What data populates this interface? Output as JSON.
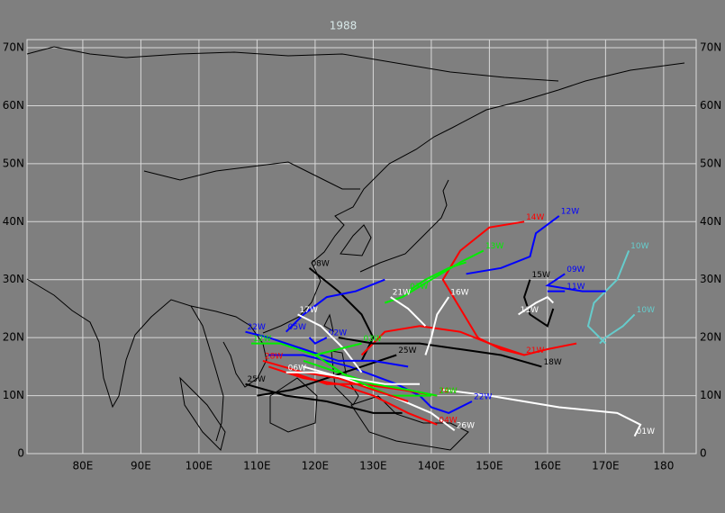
{
  "title": "1988",
  "map": {
    "xlim": [
      70.4,
      185.6
    ],
    "ylim": [
      0,
      71.4
    ],
    "grid": true,
    "xticks": [
      {
        "value": 80,
        "label": "80E"
      },
      {
        "value": 90,
        "label": "90E"
      },
      {
        "value": 100,
        "label": "100E"
      },
      {
        "value": 110,
        "label": "110E"
      },
      {
        "value": 120,
        "label": "120E"
      },
      {
        "value": 130,
        "label": "130E"
      },
      {
        "value": 140,
        "label": "140E"
      },
      {
        "value": 150,
        "label": "150E"
      },
      {
        "value": 160,
        "label": "160E"
      },
      {
        "value": 170,
        "label": "170E"
      },
      180
    ],
    "yticks": [
      0,
      {
        "value": 10,
        "label": "10N"
      },
      {
        "value": 20,
        "label": "20N"
      },
      {
        "value": 30,
        "label": "30N"
      },
      {
        "value": 40,
        "label": "40N"
      },
      {
        "value": 50,
        "label": "50N"
      },
      {
        "value": 60,
        "label": "60N"
      },
      {
        "value": 70,
        "label": "70N"
      }
    ],
    "tracks": [
      {
        "name": "01W",
        "color": "#ffffff",
        "points": [
          [
            175,
            3
          ],
          [
            176,
            5
          ],
          [
            172,
            7
          ],
          [
            162,
            8
          ],
          [
            150,
            10
          ],
          [
            142,
            11
          ]
        ]
      },
      {
        "name": "26W",
        "color": "#ffffff",
        "points": [
          [
            144,
            4
          ],
          [
            140,
            7
          ],
          [
            133,
            10
          ],
          [
            125,
            13
          ],
          [
            118,
            15
          ]
        ]
      },
      {
        "name": "04W",
        "color": "#ff0000",
        "points": [
          [
            141,
            5
          ],
          [
            136,
            7
          ],
          [
            130,
            10
          ],
          [
            124,
            12
          ],
          [
            118,
            13
          ],
          [
            112,
            15
          ]
        ]
      },
      {
        "name": "22W",
        "color": "#0000ff",
        "points": [
          [
            147,
            9
          ],
          [
            143,
            7
          ],
          [
            140,
            8
          ],
          [
            138,
            10
          ],
          [
            134,
            12
          ],
          [
            126,
            15
          ],
          [
            118,
            17
          ],
          [
            112,
            17
          ]
        ]
      },
      {
        "name": "24W",
        "color": "#ff0000",
        "points": [
          [
            141,
            10
          ],
          [
            135,
            11
          ],
          [
            128,
            12
          ],
          [
            122,
            12
          ],
          [
            116,
            14
          ]
        ]
      },
      {
        "name": "19W",
        "color": "#00ee00",
        "points": [
          [
            141,
            10
          ],
          [
            136,
            11
          ],
          [
            130,
            12
          ],
          [
            124,
            14
          ],
          [
            118,
            16
          ]
        ]
      },
      {
        "name": "08W",
        "color": "#000000",
        "points": [
          [
            119,
            32
          ],
          [
            124,
            28
          ],
          [
            128,
            24
          ],
          [
            130,
            20
          ],
          [
            128,
            16
          ]
        ]
      },
      {
        "name": "12W",
        "color": "#0000ff",
        "points": [
          [
            162,
            41
          ],
          [
            158,
            38
          ],
          [
            157,
            34
          ],
          [
            152,
            32
          ],
          [
            146,
            31
          ]
        ]
      },
      {
        "name": "14W",
        "color": "#ff0000",
        "points": [
          [
            156,
            40
          ],
          [
            150,
            39
          ],
          [
            145,
            35
          ],
          [
            142,
            30
          ],
          [
            145,
            25
          ],
          [
            148,
            20
          ],
          [
            152,
            18
          ],
          [
            156,
            17
          ],
          [
            160,
            18
          ],
          [
            165,
            19
          ]
        ]
      },
      {
        "name": "21W",
        "color": "#ff0000",
        "points": [
          [
            156,
            17
          ],
          [
            150,
            19
          ],
          [
            145,
            21
          ],
          [
            138,
            22
          ],
          [
            132,
            21
          ],
          [
            128,
            17
          ]
        ]
      },
      {
        "name": "10W",
        "color": "#66cccc",
        "points": [
          [
            174,
            35
          ],
          [
            172,
            30
          ],
          [
            168,
            26
          ],
          [
            167,
            22
          ],
          [
            170,
            19
          ]
        ]
      },
      {
        "name": "10W",
        "color": "#66cccc",
        "points": [
          [
            175,
            24
          ],
          [
            173,
            22
          ],
          [
            170,
            20
          ],
          [
            169,
            19
          ]
        ]
      },
      {
        "name": "09W",
        "color": "#0000ff",
        "points": [
          [
            163,
            31
          ],
          [
            160,
            29
          ],
          [
            166,
            28
          ],
          [
            170,
            28
          ]
        ]
      },
      {
        "name": "11W",
        "color": "#0000ff",
        "points": [
          [
            163,
            28
          ],
          [
            160,
            28
          ]
        ]
      },
      {
        "name": "15W",
        "color": "#000000",
        "points": [
          [
            157,
            30
          ],
          [
            156,
            27
          ],
          [
            157,
            24
          ],
          [
            160,
            22
          ],
          [
            161,
            25
          ]
        ]
      },
      {
        "name": "11W",
        "color": "#ffffff",
        "points": [
          [
            155,
            24
          ],
          [
            158,
            26
          ],
          [
            160,
            27
          ],
          [
            161,
            26
          ]
        ]
      },
      {
        "name": "18W",
        "color": "#000000",
        "points": [
          [
            159,
            15
          ],
          [
            152,
            17
          ],
          [
            145,
            18
          ],
          [
            138,
            19
          ],
          [
            130,
            19
          ],
          [
            124,
            20
          ]
        ]
      },
      {
        "name": "13W",
        "color": "#00ee00",
        "points": [
          [
            149,
            35
          ],
          [
            145,
            33
          ],
          [
            140,
            30
          ],
          [
            135,
            27
          ],
          [
            132,
            26
          ]
        ]
      },
      {
        "name": "07W",
        "color": "#00ee00",
        "points": [
          [
            136,
            28
          ],
          [
            139,
            30
          ],
          [
            143,
            32
          ],
          [
            146,
            33
          ]
        ]
      },
      {
        "name": "16W",
        "color": "#ffffff",
        "points": [
          [
            143,
            27
          ],
          [
            141,
            24
          ],
          [
            140,
            20
          ],
          [
            139,
            17
          ]
        ]
      },
      {
        "name": "21W",
        "color": "#ffffff",
        "points": [
          [
            133,
            27
          ],
          [
            136,
            25
          ],
          [
            139,
            22
          ]
        ]
      },
      {
        "name": "25W",
        "color": "#000000",
        "points": [
          [
            134,
            17
          ],
          [
            128,
            15
          ],
          [
            122,
            13
          ],
          [
            116,
            11
          ],
          [
            110,
            10
          ]
        ]
      },
      {
        "name": "02W",
        "color": "#0000ff",
        "points": [
          [
            122,
            20
          ],
          [
            120,
            19
          ],
          [
            119,
            20
          ]
        ]
      },
      {
        "name": "05W",
        "color": "#0000ff",
        "points": [
          [
            115,
            21
          ],
          [
            118,
            24
          ],
          [
            122,
            27
          ],
          [
            127,
            28
          ],
          [
            132,
            30
          ]
        ]
      },
      {
        "name": "17W",
        "color": "#ffffff",
        "points": [
          [
            117,
            24
          ],
          [
            121,
            22
          ],
          [
            125,
            18
          ],
          [
            128,
            14
          ]
        ]
      },
      {
        "name": "22W",
        "color": "#0000ff",
        "points": [
          [
            108,
            21
          ],
          [
            112,
            20
          ],
          [
            118,
            18
          ],
          [
            124,
            16
          ],
          [
            130,
            16
          ],
          [
            136,
            15
          ]
        ]
      },
      {
        "name": "12W",
        "color": "#00ee00",
        "points": [
          [
            109,
            19
          ],
          [
            114,
            19
          ],
          [
            120,
            17
          ],
          [
            126,
            13
          ],
          [
            133,
            10
          ],
          [
            140,
            10
          ]
        ]
      },
      {
        "name": "28W",
        "color": "#ff0000",
        "points": [
          [
            111,
            16
          ],
          [
            118,
            14
          ],
          [
            124,
            13
          ],
          [
            130,
            11
          ],
          [
            136,
            9
          ]
        ]
      },
      {
        "name": "06W",
        "color": "#ffffff",
        "points": [
          [
            115,
            14
          ],
          [
            120,
            14
          ],
          [
            126,
            13
          ],
          [
            132,
            12
          ],
          [
            138,
            12
          ]
        ]
      },
      {
        "name": "25W",
        "color": "#000000",
        "points": [
          [
            108,
            12
          ],
          [
            115,
            10
          ],
          [
            122,
            9
          ],
          [
            130,
            7
          ],
          [
            135,
            7
          ]
        ]
      },
      {
        "name": "03W",
        "color": "#00ee00",
        "points": [
          [
            128,
            19
          ],
          [
            124,
            18
          ],
          [
            120,
            17
          ]
        ]
      }
    ]
  }
}
